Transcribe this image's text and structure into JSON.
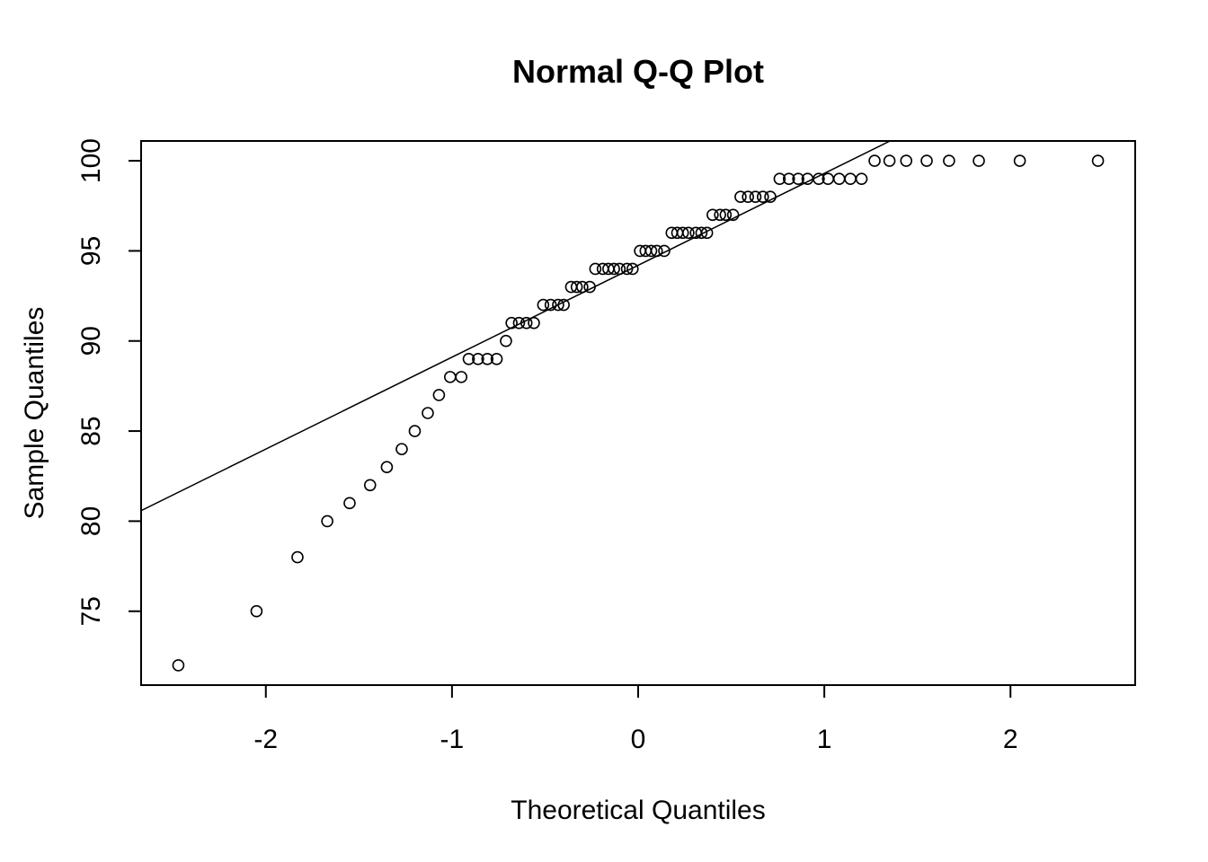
{
  "chart_data": {
    "type": "scatter",
    "title": "Normal Q-Q Plot",
    "xlabel": "Theoretical Quantiles",
    "ylabel": "Sample Quantiles",
    "xlim": [
      -2.67,
      2.67
    ],
    "ylim": [
      70.9,
      101.1
    ],
    "xticks": [
      "-2",
      "-1",
      "0",
      "1",
      "2"
    ],
    "yticks": [
      "75",
      "80",
      "85",
      "90",
      "95",
      "100"
    ],
    "grid": false,
    "reference_line": {
      "intercept": 94.2,
      "slope": 5.1
    },
    "points": [
      [
        -2.47,
        72
      ],
      [
        -2.05,
        75
      ],
      [
        -1.83,
        78
      ],
      [
        -1.67,
        80
      ],
      [
        -1.55,
        81
      ],
      [
        -1.44,
        82
      ],
      [
        -1.35,
        83
      ],
      [
        -1.27,
        84
      ],
      [
        -1.2,
        85
      ],
      [
        -1.13,
        86
      ],
      [
        -1.07,
        87
      ],
      [
        -1.01,
        88
      ],
      [
        -0.95,
        88
      ],
      [
        -0.91,
        89
      ],
      [
        -0.86,
        89
      ],
      [
        -0.81,
        89
      ],
      [
        -0.76,
        89
      ],
      [
        -0.71,
        90
      ],
      [
        -0.68,
        91
      ],
      [
        -0.64,
        91
      ],
      [
        -0.6,
        91
      ],
      [
        -0.56,
        91
      ],
      [
        -0.51,
        92
      ],
      [
        -0.47,
        92
      ],
      [
        -0.43,
        92
      ],
      [
        -0.4,
        92
      ],
      [
        -0.36,
        93
      ],
      [
        -0.33,
        93
      ],
      [
        -0.3,
        93
      ],
      [
        -0.26,
        93
      ],
      [
        -0.23,
        94
      ],
      [
        -0.19,
        94
      ],
      [
        -0.16,
        94
      ],
      [
        -0.13,
        94
      ],
      [
        -0.1,
        94
      ],
      [
        -0.06,
        94
      ],
      [
        -0.03,
        94
      ],
      [
        0.01,
        95
      ],
      [
        0.04,
        95
      ],
      [
        0.07,
        95
      ],
      [
        0.1,
        95
      ],
      [
        0.14,
        95
      ],
      [
        0.18,
        96
      ],
      [
        0.21,
        96
      ],
      [
        0.24,
        96
      ],
      [
        0.27,
        96
      ],
      [
        0.31,
        96
      ],
      [
        0.34,
        96
      ],
      [
        0.37,
        96
      ],
      [
        0.4,
        97
      ],
      [
        0.44,
        97
      ],
      [
        0.47,
        97
      ],
      [
        0.51,
        97
      ],
      [
        0.55,
        98
      ],
      [
        0.59,
        98
      ],
      [
        0.63,
        98
      ],
      [
        0.67,
        98
      ],
      [
        0.71,
        98
      ],
      [
        0.76,
        99
      ],
      [
        0.81,
        99
      ],
      [
        0.86,
        99
      ],
      [
        0.91,
        99
      ],
      [
        0.97,
        99
      ],
      [
        1.02,
        99
      ],
      [
        1.08,
        99
      ],
      [
        1.14,
        99
      ],
      [
        1.2,
        99
      ],
      [
        1.27,
        100
      ],
      [
        1.35,
        100
      ],
      [
        1.44,
        100
      ],
      [
        1.55,
        100
      ],
      [
        1.67,
        100
      ],
      [
        1.83,
        100
      ],
      [
        2.05,
        100
      ],
      [
        2.47,
        100
      ]
    ]
  }
}
